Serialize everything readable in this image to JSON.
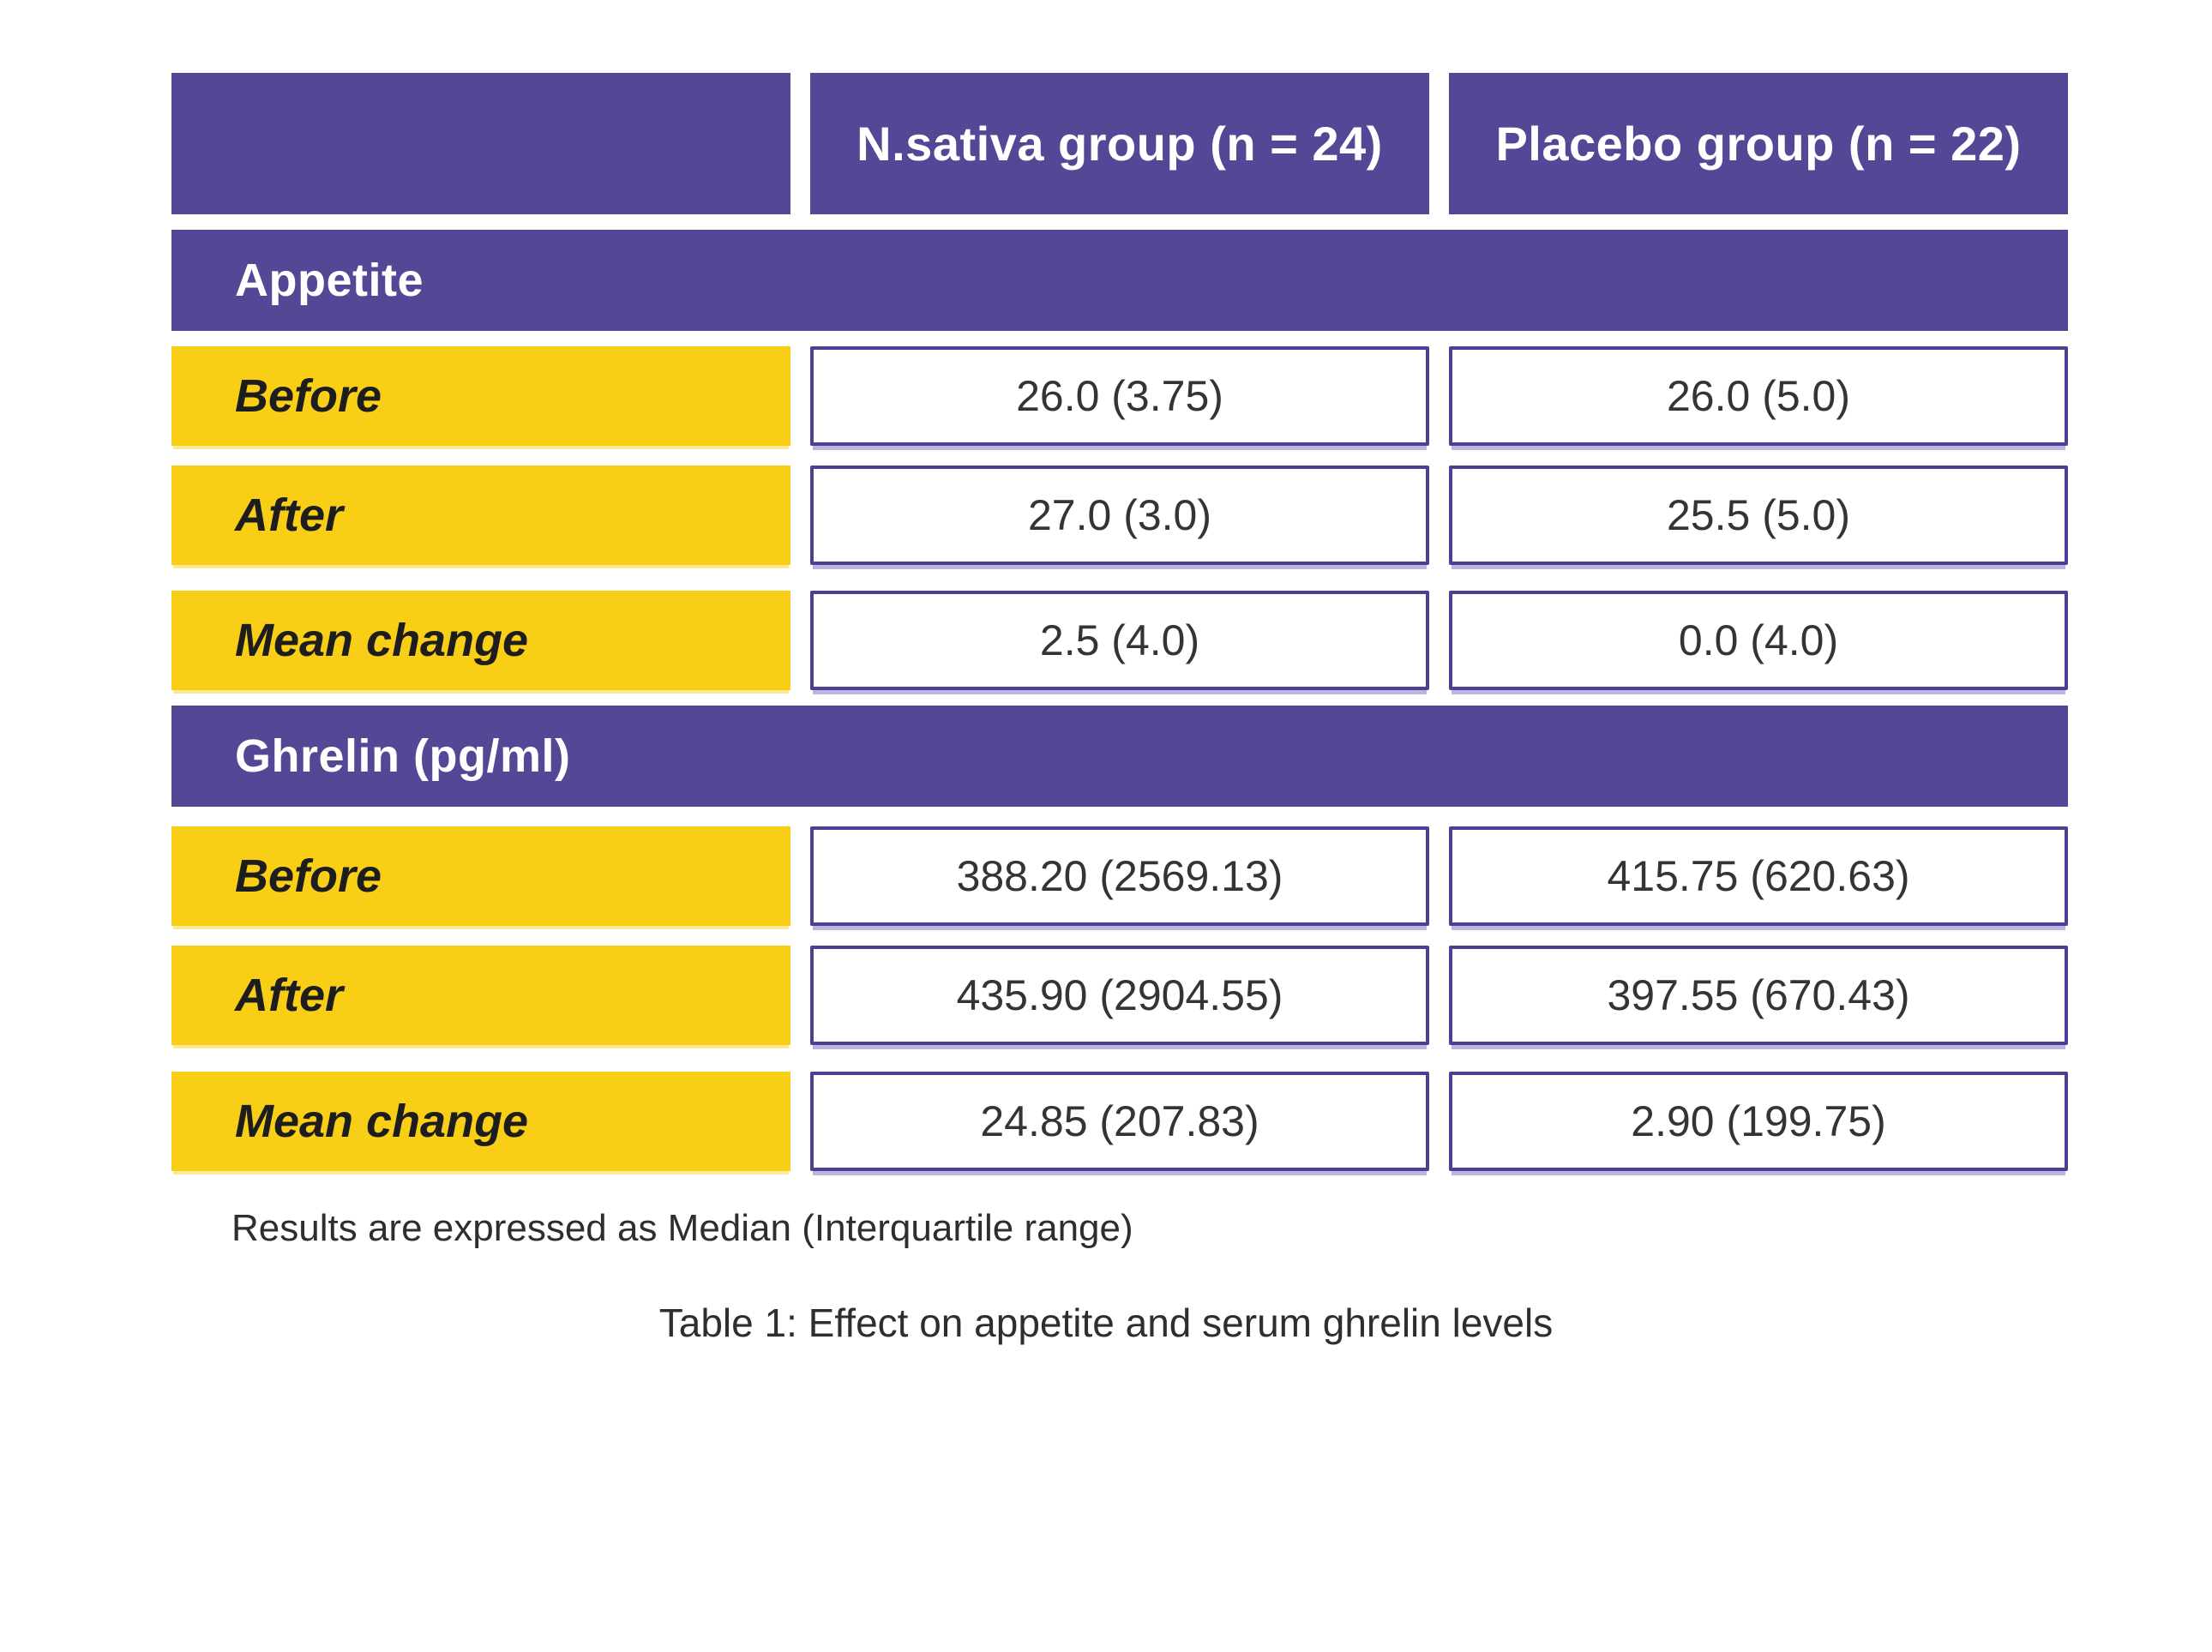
{
  "colors": {
    "header_purple": "#564696",
    "cell_border_purple": "#4c3f94",
    "label_yellow": "#f8ce17",
    "header_text": "#ffffff",
    "body_text": "#343434"
  },
  "table": {
    "columns": [
      "",
      "N.sativa group (n = 24)",
      "Placebo group (n = 22)"
    ],
    "sections": [
      {
        "title": "Appetite",
        "rows": [
          {
            "label": "Before",
            "values": [
              "26.0 (3.75)",
              "26.0 (5.0)"
            ]
          },
          {
            "label": "After",
            "values": [
              "27.0 (3.0)",
              "25.5 (5.0)"
            ]
          },
          {
            "label": "Mean change",
            "values": [
              "2.5 (4.0)",
              "0.0 (4.0)"
            ]
          }
        ]
      },
      {
        "title": "Ghrelin (pg/ml)",
        "rows": [
          {
            "label": "Before",
            "values": [
              "388.20 (2569.13)",
              "415.75 (620.63)"
            ]
          },
          {
            "label": "After",
            "values": [
              "435.90 (2904.55)",
              "397.55 (670.43)"
            ]
          },
          {
            "label": "Mean change",
            "values": [
              "24.85 (207.83)",
              "2.90 (199.75)"
            ]
          }
        ]
      }
    ],
    "footnote": "Results are expressed as Median (Interquartile range)",
    "caption": "Table 1: Effect on appetite and serum ghrelin levels"
  },
  "chart_data": {
    "type": "table",
    "title": "Table 1: Effect on appetite and serum ghrelin levels",
    "footnote": "Results are expressed as Median (Interquartile range)",
    "value_format": "Median (Interquartile range)",
    "columns": [
      "",
      "N.sativa group (n = 24)",
      "Placebo group (n = 22)"
    ],
    "sections": [
      {
        "title": "Appetite",
        "rows": [
          {
            "label": "Before",
            "N.sativa group (n = 24)": "26.0 (3.75)",
            "Placebo group (n = 22)": "26.0 (5.0)"
          },
          {
            "label": "After",
            "N.sativa group (n = 24)": "27.0 (3.0)",
            "Placebo group (n = 22)": "25.5 (5.0)"
          },
          {
            "label": "Mean change",
            "N.sativa group (n = 24)": "2.5 (4.0)",
            "Placebo group (n = 22)": "0.0 (4.0)"
          }
        ]
      },
      {
        "title": "Ghrelin (pg/ml)",
        "rows": [
          {
            "label": "Before",
            "N.sativa group (n = 24)": "388.20 (2569.13)",
            "Placebo group (n = 22)": "415.75 (620.63)"
          },
          {
            "label": "After",
            "N.sativa group (n = 24)": "435.90 (2904.55)",
            "Placebo group (n = 22)": "397.55 (670.43)"
          },
          {
            "label": "Mean change",
            "N.sativa group (n = 24)": "24.85 (207.83)",
            "Placebo group (n = 22)": "2.90 (199.75)"
          }
        ]
      }
    ]
  }
}
